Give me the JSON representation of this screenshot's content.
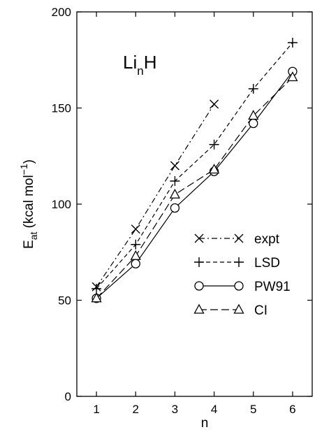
{
  "chart_data": {
    "type": "line",
    "title": "",
    "annotation": {
      "main": "Li",
      "sub": "n",
      "tail": "H"
    },
    "xlabel": "n",
    "ylabel": {
      "main": "E",
      "sub": "at",
      "unit_pre": " (kcal mol",
      "unit_sup": "−1",
      "unit_post": ")"
    },
    "xlim": [
      0.5,
      6.5
    ],
    "ylim": [
      0,
      200
    ],
    "xticks": [
      1,
      2,
      3,
      4,
      5,
      6
    ],
    "yticks": [
      0,
      50,
      100,
      150,
      200
    ],
    "grid": false,
    "legend_position": "center-right",
    "series": [
      {
        "name": "expt",
        "marker": "x",
        "dash": "dashdot",
        "x": [
          1,
          2,
          3,
          4
        ],
        "values": [
          57,
          87,
          120,
          152
        ]
      },
      {
        "name": "LSD",
        "marker": "plus",
        "dash": "dashed",
        "x": [
          1,
          2,
          3,
          4,
          5,
          6
        ],
        "values": [
          56,
          79,
          112,
          131,
          160,
          184
        ]
      },
      {
        "name": "PW91",
        "marker": "circle",
        "dash": "solid",
        "x": [
          1,
          2,
          3,
          4,
          5,
          6
        ],
        "values": [
          51,
          69,
          98,
          117,
          142,
          169
        ]
      },
      {
        "name": "CI",
        "marker": "triangle",
        "dash": "longdash",
        "x": [
          1,
          2,
          3,
          4,
          5,
          6
        ],
        "values": [
          51,
          73,
          105,
          118,
          146,
          166
        ]
      }
    ]
  }
}
